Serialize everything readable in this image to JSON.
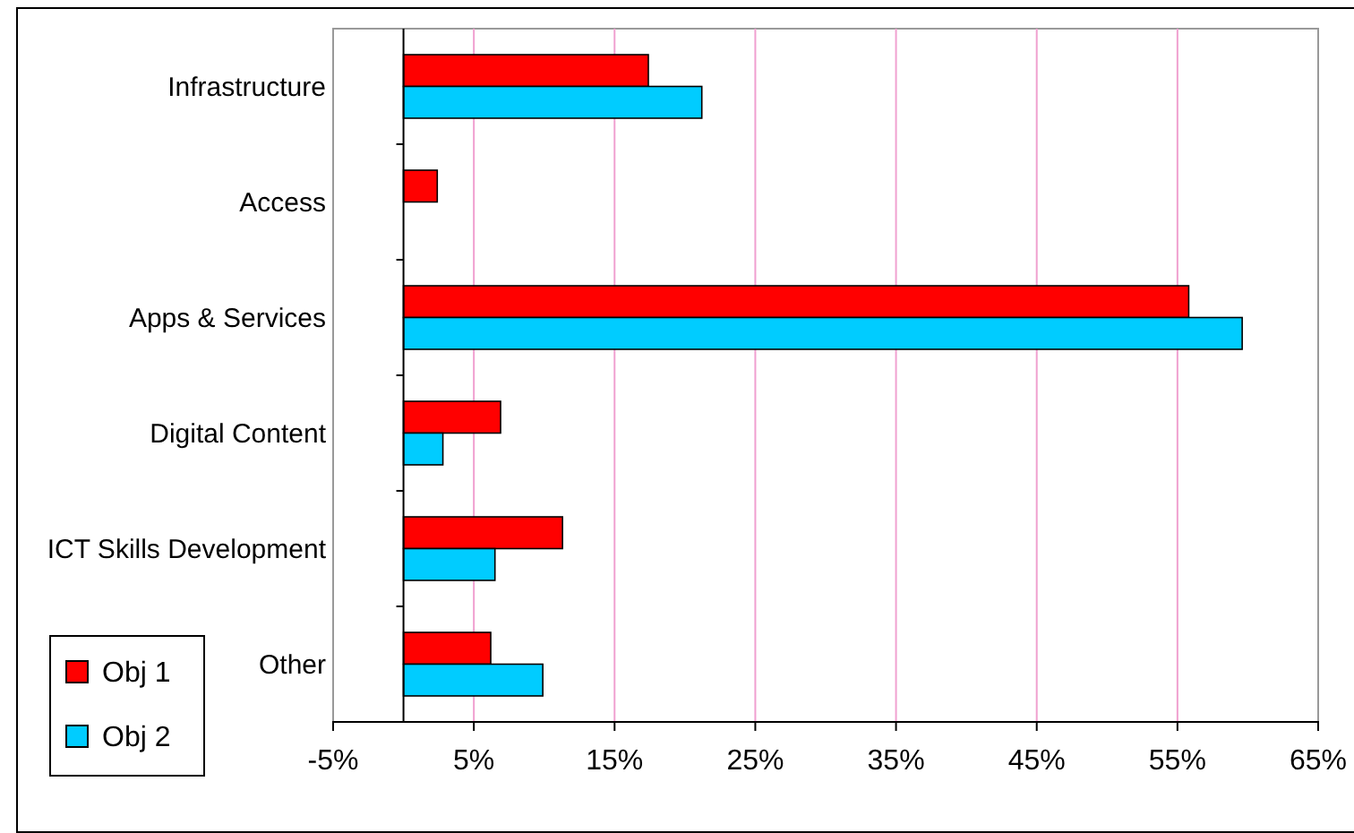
{
  "chart_data": {
    "type": "bar",
    "orientation": "horizontal",
    "categories": [
      "Infrastructure",
      "Access",
      "Apps & Services",
      "Digital Content",
      "ICT Skills Development",
      "Other"
    ],
    "series": [
      {
        "name": "Obj 1",
        "color": "#ff0000",
        "values": [
          17.4,
          2.4,
          55.8,
          6.9,
          11.3,
          6.2
        ]
      },
      {
        "name": "Obj 2",
        "color": "#00ccff",
        "values": [
          21.2,
          null,
          59.6,
          2.8,
          6.5,
          9.9
        ]
      }
    ],
    "xlim": [
      -5,
      65
    ],
    "xticks": [
      {
        "value": -5,
        "label": "-5%"
      },
      {
        "value": 5,
        "label": "5%"
      },
      {
        "value": 15,
        "label": "15%"
      },
      {
        "value": 25,
        "label": "25%"
      },
      {
        "value": 35,
        "label": "35%"
      },
      {
        "value": 45,
        "label": "45%"
      },
      {
        "value": 55,
        "label": "55%"
      },
      {
        "value": 65,
        "label": "65%"
      }
    ],
    "grid": "x",
    "legend": "bottom left"
  }
}
